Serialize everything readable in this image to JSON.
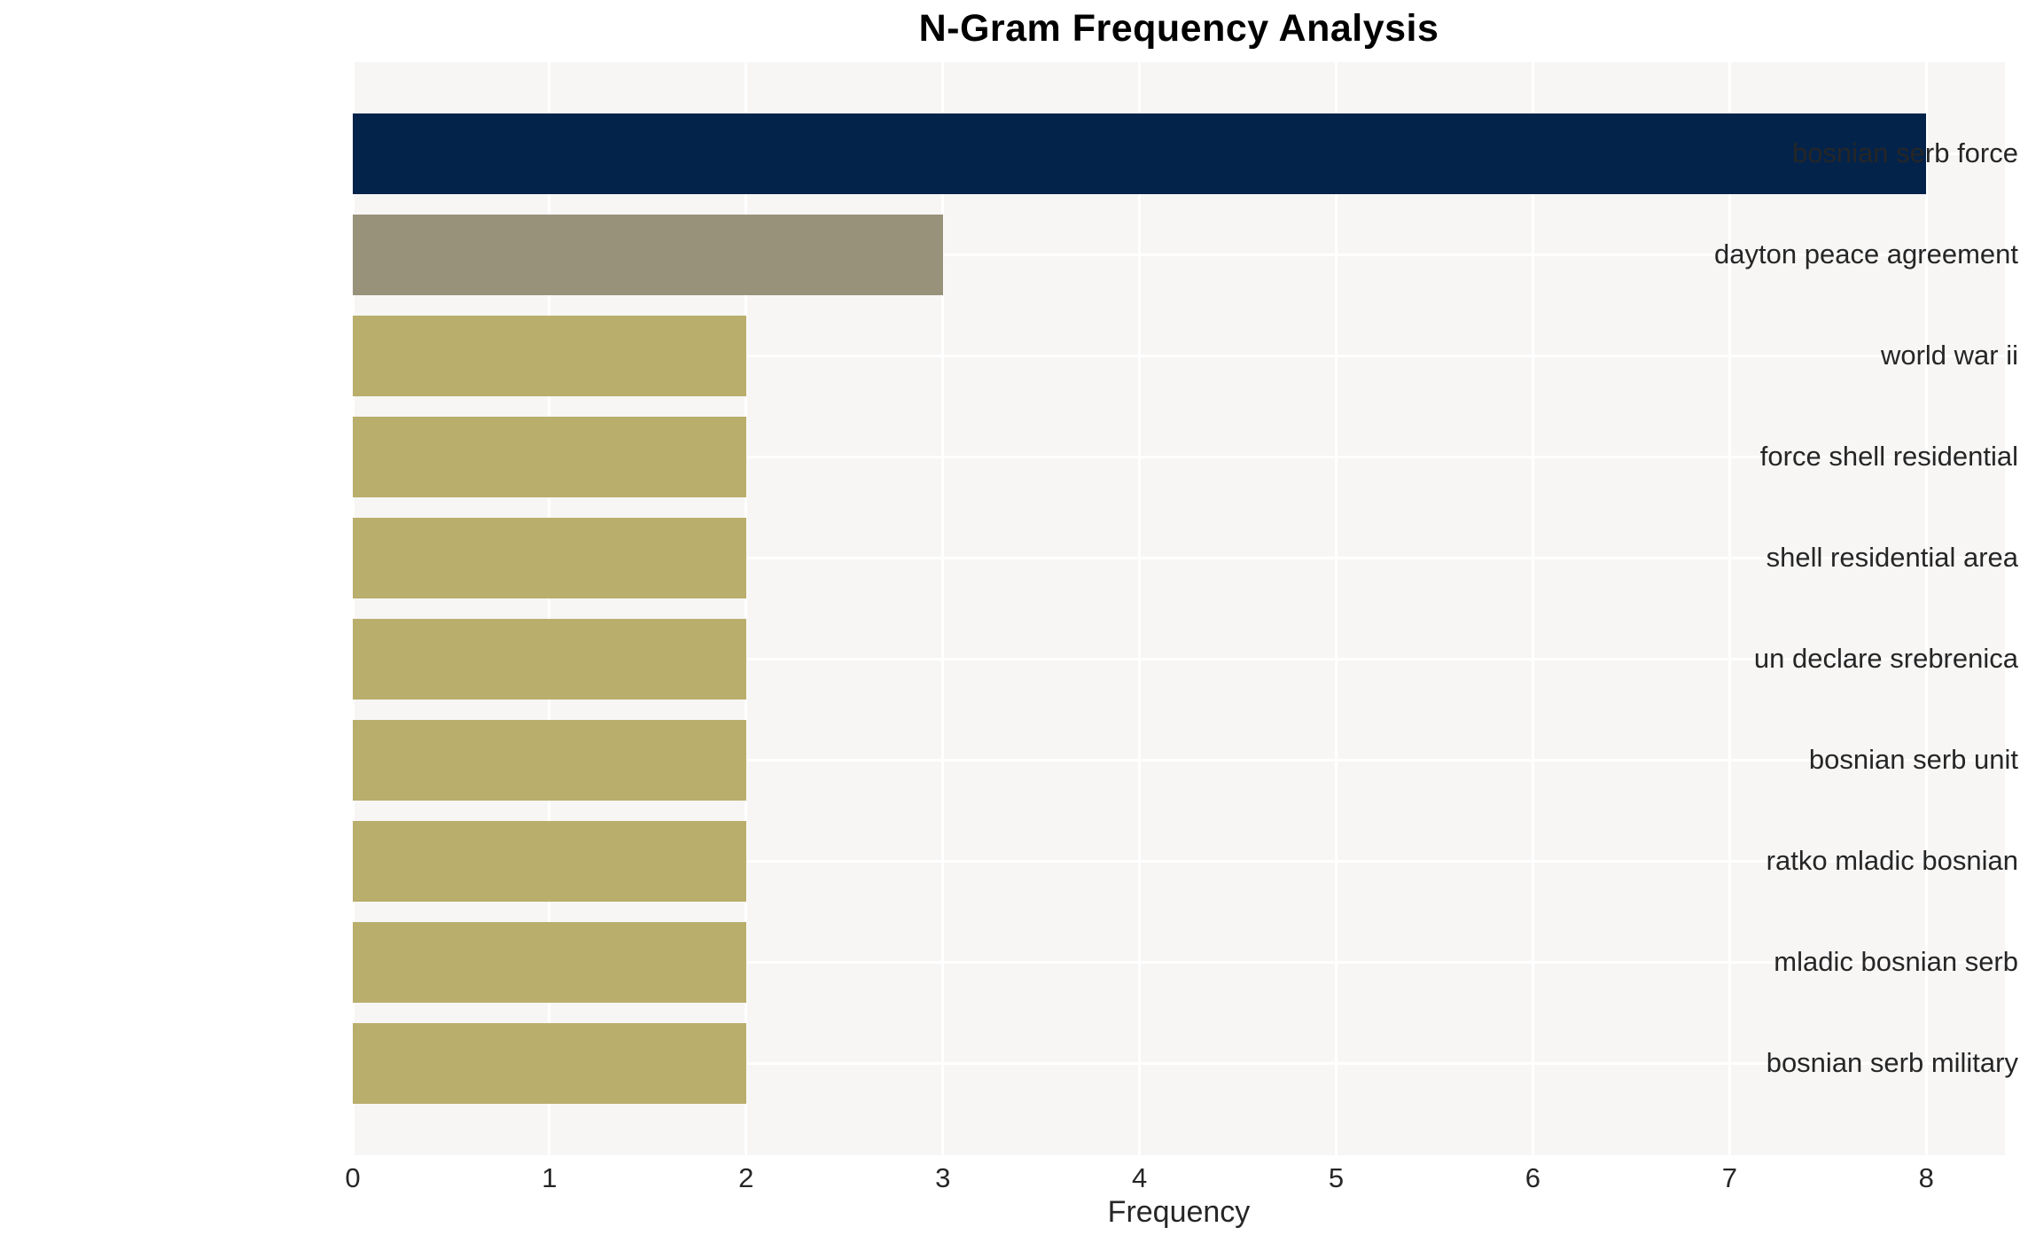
{
  "chart_data": {
    "type": "bar",
    "orientation": "horizontal",
    "title": "N-Gram Frequency Analysis",
    "xlabel": "Frequency",
    "ylabel": "",
    "categories": [
      "bosnian serb force",
      "dayton peace agreement",
      "world war ii",
      "force shell residential",
      "shell residential area",
      "un declare srebrenica",
      "bosnian serb unit",
      "ratko mladic bosnian",
      "mladic bosnian serb",
      "bosnian serb military"
    ],
    "values": [
      8,
      3,
      2,
      2,
      2,
      2,
      2,
      2,
      2,
      2
    ],
    "bar_colors": [
      "#03234B",
      "#99927A",
      "#B9AE6C",
      "#B9AE6C",
      "#B9AE6C",
      "#B9AE6C",
      "#B9AE6C",
      "#B9AE6C",
      "#B9AE6C",
      "#B9AE6C"
    ],
    "xticks": [
      "0",
      "1",
      "2",
      "3",
      "4",
      "5",
      "6",
      "7",
      "8"
    ],
    "xlim": [
      0,
      8.4
    ],
    "grid": true,
    "legend": "none",
    "colors": {
      "plot_bg": "#F7F6F5",
      "grid": "#FFFFFF",
      "tick_text": "#262626",
      "title_text": "#000000"
    }
  }
}
